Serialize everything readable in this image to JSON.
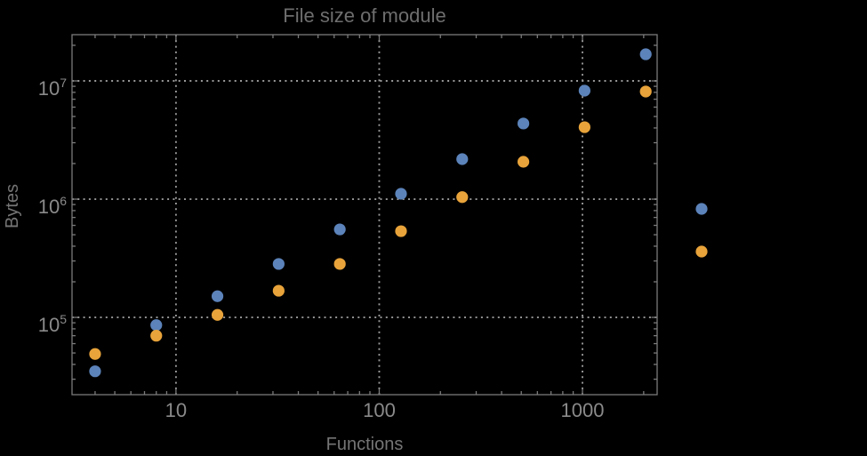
{
  "chart_data": {
    "type": "scatter",
    "title": "File size of module",
    "xlabel": "Functions",
    "ylabel": "Bytes",
    "xscale": "log",
    "yscale": "log",
    "xlim": [
      3.08,
      2330
    ],
    "ylim": [
      22200,
      24600000
    ],
    "x_ticks": [
      10,
      100,
      1000
    ],
    "y_ticks": [
      100000,
      1000000,
      10000000
    ],
    "grid": "dotted",
    "x": [
      4,
      8,
      16,
      32,
      64,
      128,
      256,
      512,
      1024,
      2048
    ],
    "series": [
      {
        "name": "series-1-blue",
        "color": "#5C83BA",
        "values": [
          35000,
          86000,
          151000,
          283000,
          555000,
          1110000,
          2180000,
          4360000,
          8270000,
          16800000
        ]
      },
      {
        "name": "series-2-orange",
        "color": "#E8A33A",
        "values": [
          49000,
          70000,
          105000,
          168000,
          283000,
          536000,
          1040000,
          2070000,
          4060000,
          8130000
        ]
      }
    ],
    "legend": {
      "position": "right-of-frame",
      "entries": [
        {
          "label": "",
          "color": "#5C83BA"
        },
        {
          "label": "",
          "color": "#E8A33A"
        }
      ]
    }
  },
  "style": {
    "background": "#000000",
    "frame_color": "#7A7A7A",
    "grid_color": "#999999",
    "tick_label_color": "#8A8A8A",
    "title_color": "#6E6E6E",
    "axis_label_color": "#757575",
    "point_radius": 6.6
  }
}
